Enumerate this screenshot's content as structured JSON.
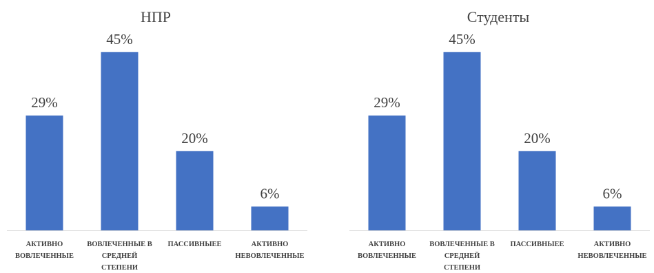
{
  "chart_data": [
    {
      "type": "bar",
      "title": "НПР",
      "categories": [
        [
          "АКТИВНО",
          "ВОВЛЕЧЕННЫЕ"
        ],
        [
          "ВОВЛЕЧЕННЫЕ В",
          "СРЕДНЕЙ",
          "СТЕПЕНИ"
        ],
        [
          "ПАССИВНЫЕЕ"
        ],
        [
          "АКТИВНО",
          "НЕВОВЛЕЧЕННЫЕ"
        ]
      ],
      "values": [
        29,
        45,
        20,
        6
      ],
      "data_labels": [
        "29%",
        "45%",
        "20%",
        "6%"
      ],
      "ylim": [
        0,
        50
      ],
      "color": "#4472C4",
      "grid": false,
      "legend": false
    },
    {
      "type": "bar",
      "title": "Студенты",
      "categories": [
        [
          "АКТИВНО",
          "ВОВЛЕЧЕННЫЕ"
        ],
        [
          "ВОВЛЕЧЕННЫЕ В",
          "СРЕДНЕЙ",
          "СТЕПЕНИ"
        ],
        [
          "ПАССИВНЫЕЕ"
        ],
        [
          "АКТИВНО",
          "НЕВОВЛЕЧЕННЫЕ"
        ]
      ],
      "values": [
        29,
        45,
        20,
        6
      ],
      "data_labels": [
        "29%",
        "45%",
        "20%",
        "6%"
      ],
      "ylim": [
        0,
        50
      ],
      "color": "#4472C4",
      "grid": false,
      "legend": false
    }
  ]
}
